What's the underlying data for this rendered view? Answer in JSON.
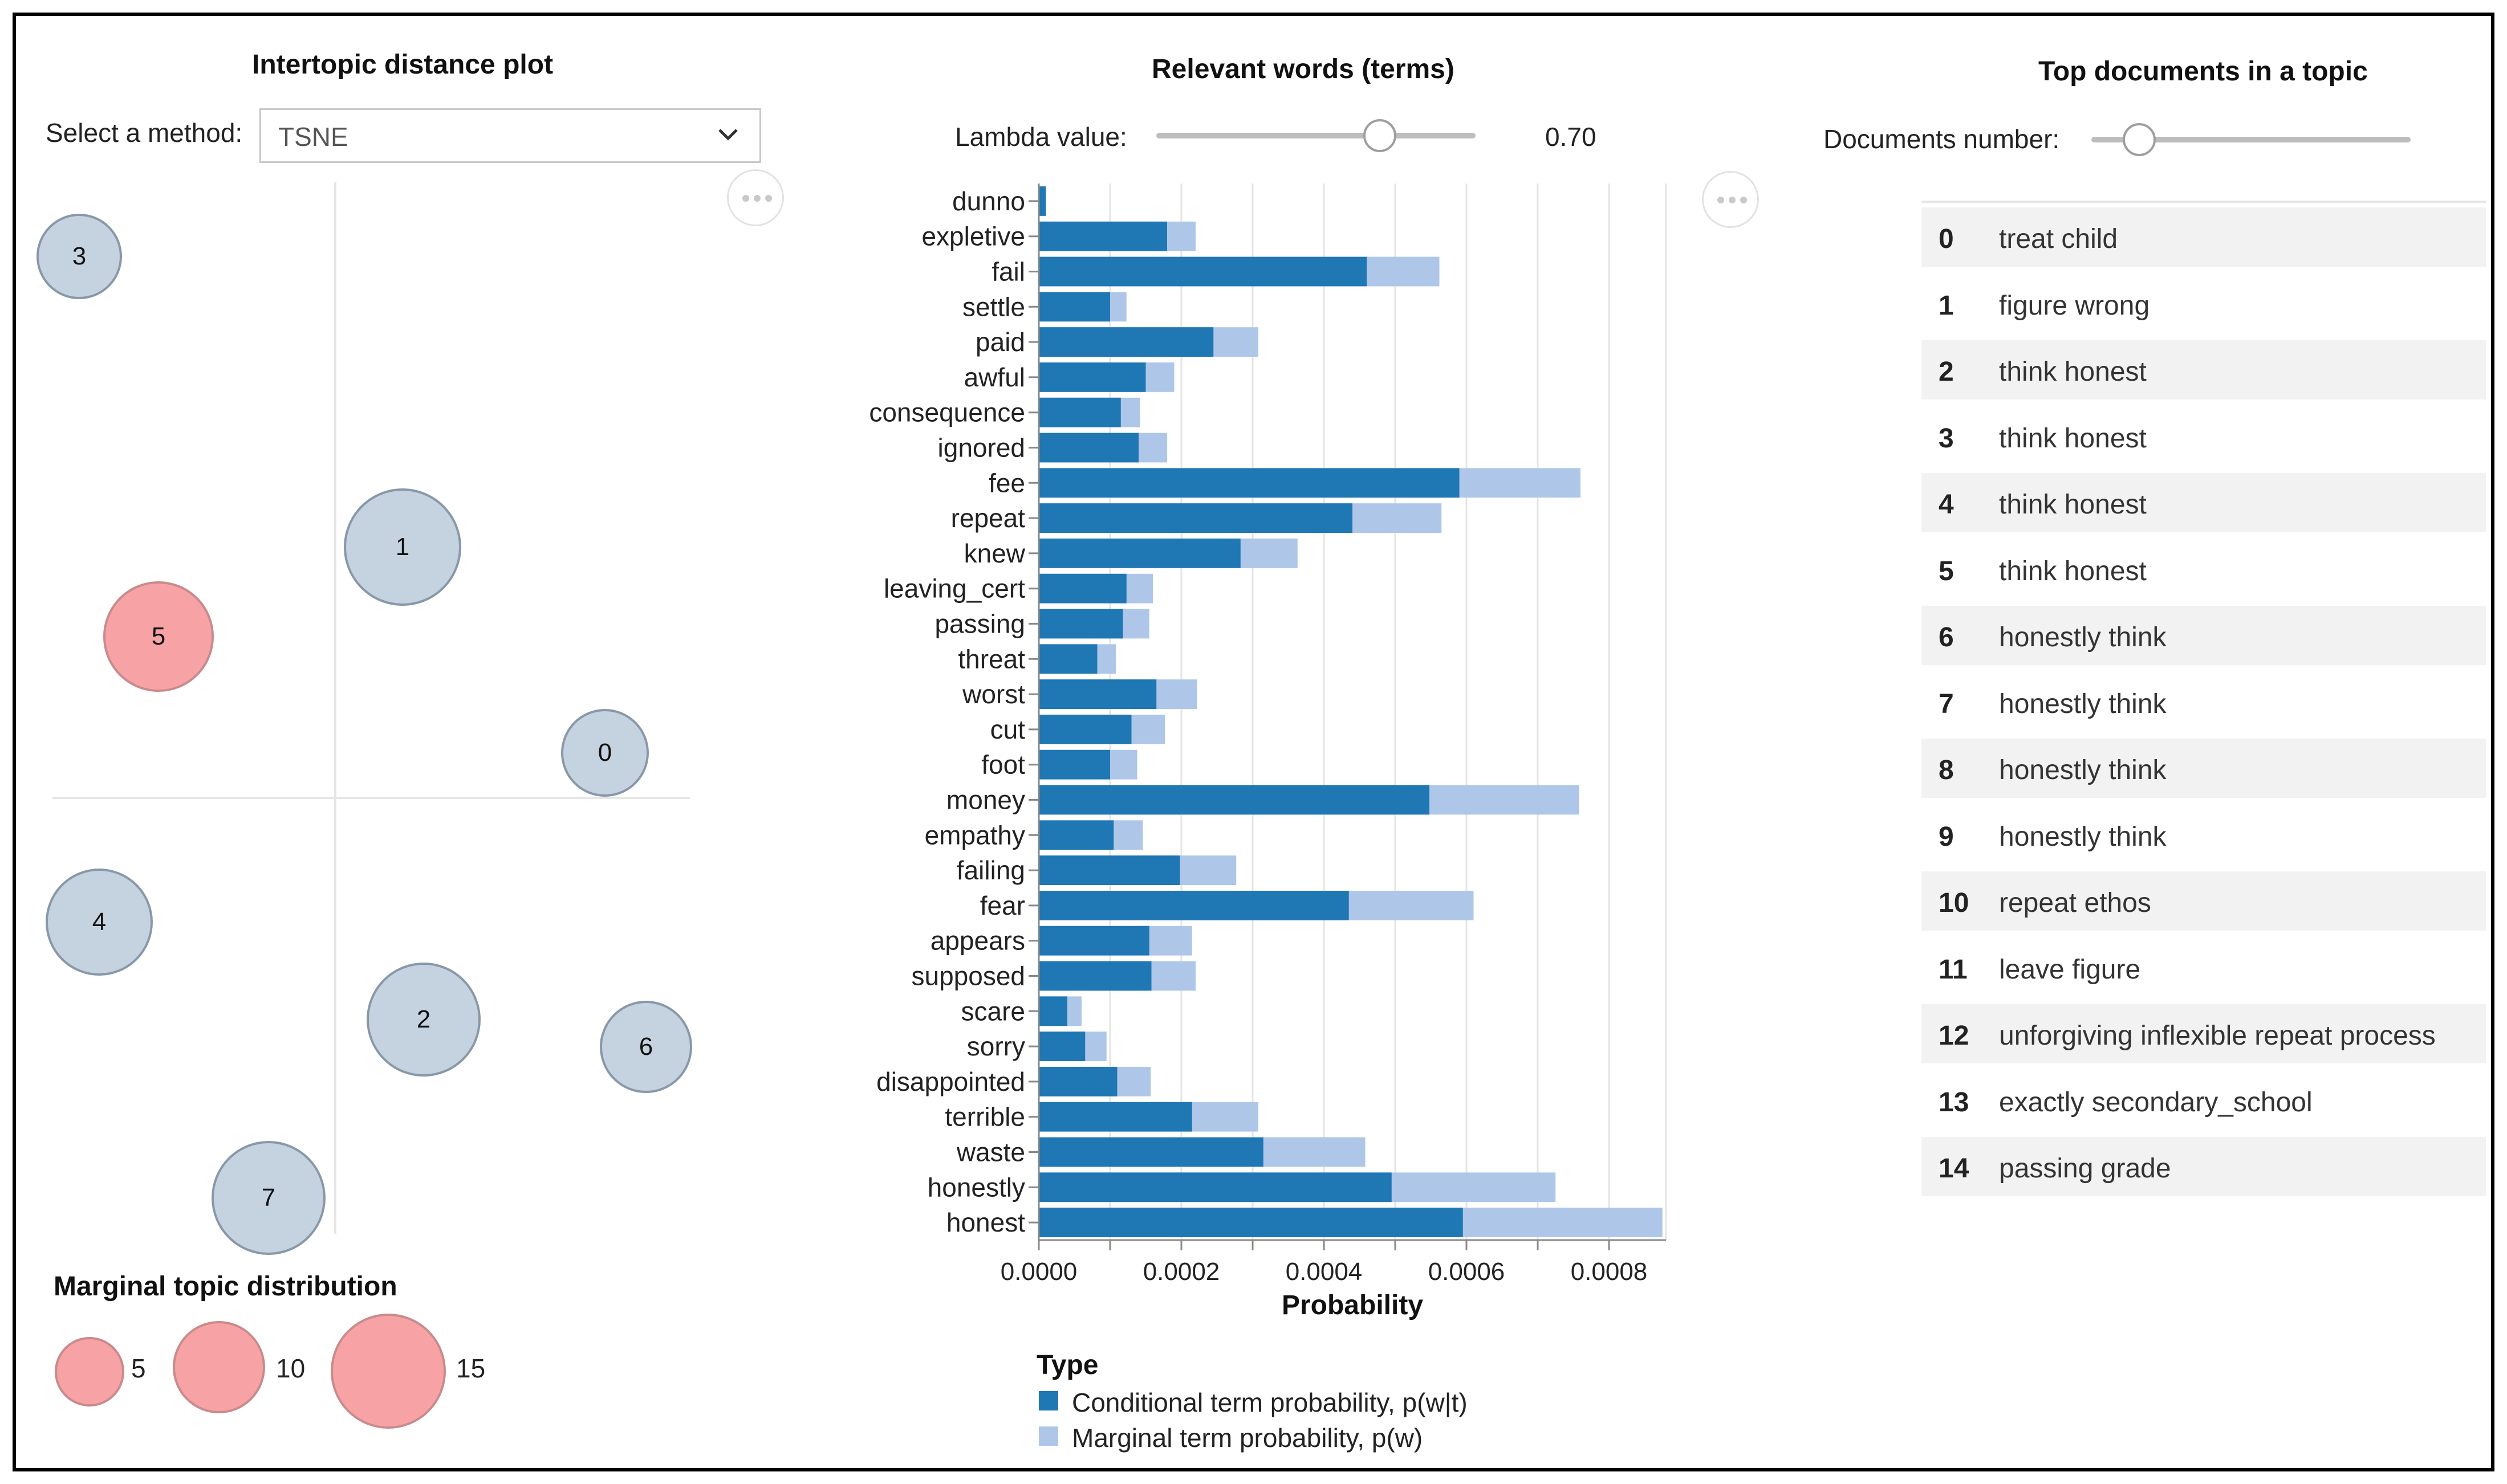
{
  "colors": {
    "conditional": "#1f77b4",
    "marginal": "#aec7e8",
    "selected_topic": "#f7a3a6",
    "topic": "#c5d2df"
  },
  "left_panel": {
    "title": "Intertopic distance plot",
    "method_label": "Select a method:",
    "method_value": "TSNE",
    "topics": [
      {
        "id": "0",
        "selected": false
      },
      {
        "id": "1",
        "selected": false
      },
      {
        "id": "2",
        "selected": false
      },
      {
        "id": "3",
        "selected": false
      },
      {
        "id": "4",
        "selected": false
      },
      {
        "id": "5",
        "selected": true
      },
      {
        "id": "6",
        "selected": false
      },
      {
        "id": "7",
        "selected": false
      }
    ],
    "legend": {
      "title": "Marginal topic distribution",
      "items": [
        "5",
        "10",
        "15"
      ]
    }
  },
  "middle_panel": {
    "title": "Relevant words (terms)",
    "lambda_label": "Lambda value:",
    "lambda_value": "0.70",
    "lambda_fraction": 0.7,
    "type_legend": {
      "title": "Type",
      "conditional": "Conditional term probability, p(w|t)",
      "marginal": "Marginal term probability, p(w)"
    }
  },
  "chart_data": {
    "type": "bar",
    "orientation": "horizontal",
    "xlabel": "Probability",
    "xlim": [
      0,
      0.00088
    ],
    "x_ticks": [
      "0.0000",
      "0.0002",
      "0.0004",
      "0.0006",
      "0.0008"
    ],
    "categories": [
      "dunno",
      "expletive",
      "fail",
      "settle",
      "paid",
      "awful",
      "consequence",
      "ignored",
      "fee",
      "repeat",
      "knew",
      "leaving_cert",
      "passing",
      "threat",
      "worst",
      "cut",
      "foot",
      "money",
      "empathy",
      "failing",
      "fear",
      "appears",
      "supposed",
      "scare",
      "sorry",
      "disappointed",
      "terrible",
      "waste",
      "honestly",
      "honest"
    ],
    "series": [
      {
        "name": "Conditional term probability, p(w|t)",
        "values": [
          1e-05,
          0.00018,
          0.00046,
          0.0001,
          0.000245,
          0.00015,
          0.000115,
          0.00014,
          0.00059,
          0.00044,
          0.000283,
          0.000123,
          0.000118,
          8.2e-05,
          0.000165,
          0.00013,
          0.0001,
          0.000548,
          0.000105,
          0.000198,
          0.000435,
          0.000155,
          0.000158,
          4e-05,
          6.5e-05,
          0.00011,
          0.000215,
          0.000315,
          0.000495,
          0.000595
        ]
      },
      {
        "name": "Marginal term probability, p(w)",
        "values": [
          1e-05,
          0.00022,
          0.000562,
          0.000123,
          0.000308,
          0.00019,
          0.000142,
          0.00018,
          0.00076,
          0.000565,
          0.000363,
          0.00016,
          0.000155,
          0.000108,
          0.000222,
          0.000177,
          0.000138,
          0.000758,
          0.000146,
          0.000277,
          0.00061,
          0.000215,
          0.00022,
          6e-05,
          9.5e-05,
          0.000157,
          0.000308,
          0.000458,
          0.000725,
          0.000875
        ]
      }
    ]
  },
  "right_panel": {
    "title": "Top documents in a topic",
    "docs_label": "Documents number:",
    "docs_fraction": 0.15,
    "docs": [
      {
        "idx": "0",
        "text": "treat child"
      },
      {
        "idx": "1",
        "text": "figure wrong"
      },
      {
        "idx": "2",
        "text": "think honest"
      },
      {
        "idx": "3",
        "text": "think honest"
      },
      {
        "idx": "4",
        "text": "think honest"
      },
      {
        "idx": "5",
        "text": "think honest"
      },
      {
        "idx": "6",
        "text": "honestly think"
      },
      {
        "idx": "7",
        "text": "honestly think"
      },
      {
        "idx": "8",
        "text": "honestly think"
      },
      {
        "idx": "9",
        "text": "honestly think"
      },
      {
        "idx": "10",
        "text": "repeat ethos"
      },
      {
        "idx": "11",
        "text": "leave figure"
      },
      {
        "idx": "12",
        "text": "unforgiving inflexible repeat process"
      },
      {
        "idx": "13",
        "text": "exactly secondary_school"
      },
      {
        "idx": "14",
        "text": "passing grade"
      }
    ]
  }
}
